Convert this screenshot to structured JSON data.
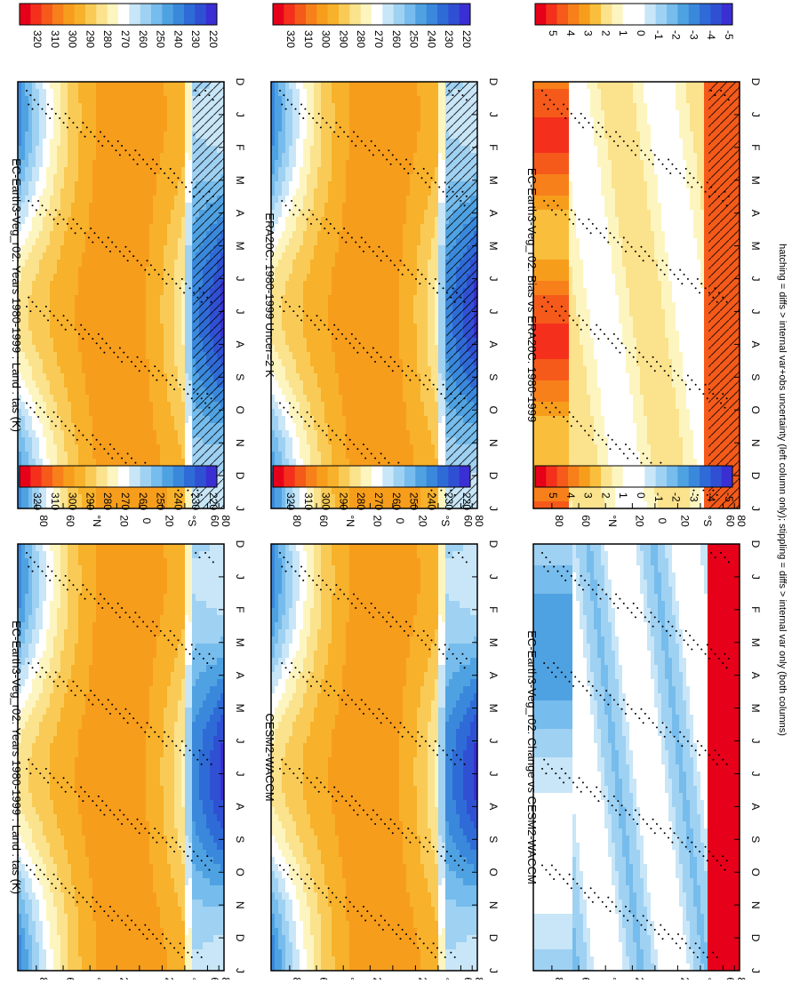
{
  "footnote": "hatching = diffs > internal var+obs uncertainty (left column only); stippling = diffs > internal var only (both columns)",
  "month_labels": [
    "D",
    "J",
    "F",
    "M",
    "A",
    "M",
    "J",
    "J",
    "A",
    "S",
    "O",
    "N",
    "D",
    "J"
  ],
  "lat_labels": [
    "80",
    "60",
    "°N",
    "20",
    "0",
    "20",
    "°S",
    "60",
    "80"
  ],
  "palettes": {
    "temp": [
      "#e6001a",
      "#f4301c",
      "#f55a1a",
      "#f7801b",
      "#f79d1c",
      "#f8b12b",
      "#f9cb56",
      "#fbe28c",
      "#fdf5c0",
      "#ffffff",
      "#c8e6f7",
      "#9fd1f2",
      "#76bcec",
      "#4fa2e2",
      "#3a88dc",
      "#2f6bd7",
      "#3050d4",
      "#3a2fd2"
    ],
    "diff": [
      "#e6001a",
      "#f4301c",
      "#f55a1a",
      "#f7801b",
      "#f79d1c",
      "#f9bf3c",
      "#fbe28c",
      "#fdf5c0",
      "#ffffff",
      "#ffffff",
      "#c8e6f7",
      "#9fd1f2",
      "#76bcec",
      "#4fa2e2",
      "#3a88dc",
      "#2f6bd7",
      "#3050d4",
      "#3a2fd2"
    ]
  },
  "panels": [
    {
      "id": "tl",
      "title": "EC-Earth3-Veg_r02: Years 1980-1999 : Land : tas (K)",
      "kind": "temp",
      "hatch": true,
      "colorbar_labels": [
        "320",
        "310",
        "300",
        "290",
        "280",
        "270",
        "260",
        "250",
        "240",
        "230",
        "220"
      ]
    },
    {
      "id": "tr",
      "title": "EC-Earth3-Veg_r02: Years 1980-1999 : Land : tas (K)",
      "kind": "temp",
      "hatch": false,
      "colorbar_labels": [
        "320",
        "310",
        "300",
        "290",
        "280",
        "270",
        "260",
        "250",
        "240",
        "230",
        "220"
      ]
    },
    {
      "id": "ml",
      "title": "ERA20C: 1980-1999 Uncer=2 K",
      "kind": "temp",
      "hatch": true,
      "colorbar_labels": [
        "320",
        "310",
        "300",
        "290",
        "280",
        "270",
        "260",
        "250",
        "240",
        "230",
        "220"
      ]
    },
    {
      "id": "mr",
      "title": "CESM2-WACCM",
      "kind": "temp",
      "hatch": false,
      "colorbar_labels": [
        "320",
        "310",
        "300",
        "290",
        "280",
        "270",
        "260",
        "250",
        "240",
        "230",
        "220"
      ]
    },
    {
      "id": "bl",
      "title": "EC-Earth3-Veg_r02: Bias vs ERA20C: 1980-1999",
      "kind": "bias",
      "hatch": true,
      "colorbar_labels": [
        "5",
        "4",
        "3",
        "2",
        "1",
        "0",
        "-1",
        "-2",
        "-3",
        "-4",
        "-5"
      ]
    },
    {
      "id": "br",
      "title": "EC-Earth3-Veg_r02: Change vs CESM2-WACCM",
      "kind": "change",
      "hatch": false,
      "colorbar_labels": [
        "5",
        "4",
        "3",
        "2",
        "1",
        "0",
        "-1",
        "-2",
        "-3",
        "-4",
        "-5"
      ]
    }
  ],
  "chart_data": [
    {
      "type": "heatmap",
      "title": "EC-Earth3-Veg_r02: Years 1980-1999 : Land : tas (K)",
      "x": "month (D..J)",
      "y": "latitude 90N..90S",
      "colorbar_range": [
        215,
        325
      ],
      "units": "K"
    },
    {
      "type": "heatmap",
      "title": "EC-Earth3-Veg_r02: Years 1980-1999 : Land : tas (K)",
      "x": "month (D..J)",
      "y": "latitude 90N..90S",
      "colorbar_range": [
        215,
        325
      ],
      "units": "K"
    },
    {
      "type": "heatmap",
      "title": "ERA20C: 1980-1999 Uncer=2 K",
      "x": "month (D..J)",
      "y": "latitude 90N..90S",
      "colorbar_range": [
        215,
        325
      ],
      "units": "K"
    },
    {
      "type": "heatmap",
      "title": "CESM2-WACCM",
      "x": "month (D..J)",
      "y": "latitude 90N..90S",
      "colorbar_range": [
        215,
        325
      ],
      "units": "K"
    },
    {
      "type": "heatmap",
      "title": "EC-Earth3-Veg_r02: Bias vs ERA20C: 1980-1999",
      "x": "month (D..J)",
      "y": "latitude 90N..90S",
      "colorbar_range": [
        -5.5,
        5.5
      ],
      "units": "K"
    },
    {
      "type": "heatmap",
      "title": "EC-Earth3-Veg_r02: Change vs CESM2-WACCM",
      "x": "month (D..J)",
      "y": "latitude 90N..90S",
      "colorbar_range": [
        -5.5,
        5.5
      ],
      "units": "K"
    }
  ]
}
